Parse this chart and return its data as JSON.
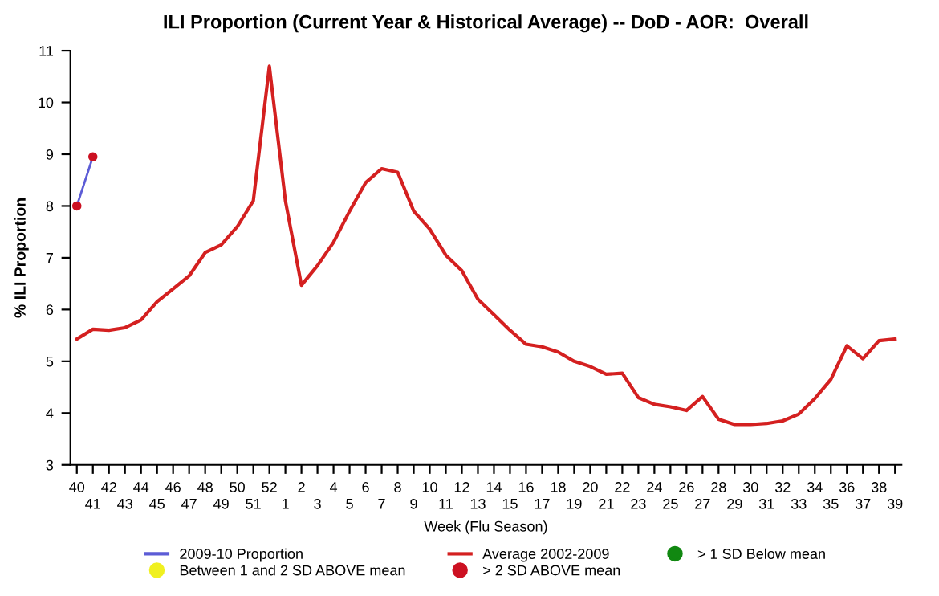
{
  "chart_data": {
    "type": "line",
    "title": "ILI Proportion (Current Year & Historical Average) -- DoD - AOR:  Overall",
    "xlabel": "Week (Flu Season)",
    "ylabel": "% ILI Proportion",
    "categories": [
      "40",
      "41",
      "42",
      "43",
      "44",
      "45",
      "46",
      "47",
      "48",
      "49",
      "50",
      "51",
      "52",
      "1",
      "2",
      "3",
      "4",
      "5",
      "6",
      "7",
      "8",
      "9",
      "10",
      "11",
      "12",
      "13",
      "14",
      "15",
      "16",
      "17",
      "18",
      "19",
      "20",
      "21",
      "22",
      "23",
      "24",
      "25",
      "26",
      "27",
      "28",
      "29",
      "30",
      "31",
      "32",
      "33",
      "34",
      "35",
      "36",
      "37",
      "38",
      "39"
    ],
    "series": [
      {
        "name": "2009-10 Proportion",
        "color": "#5c5cd6",
        "values": [
          8.0,
          8.95,
          null,
          null,
          null,
          null,
          null,
          null,
          null,
          null,
          null,
          null,
          null,
          null,
          null,
          null,
          null,
          null,
          null,
          null,
          null,
          null,
          null,
          null,
          null,
          null,
          null,
          null,
          null,
          null,
          null,
          null,
          null,
          null,
          null,
          null,
          null,
          null,
          null,
          null,
          null,
          null,
          null,
          null,
          null,
          null,
          null,
          null,
          null,
          null,
          null,
          null
        ]
      },
      {
        "name": "Average 2002-2009",
        "color": "#d42020",
        "values": [
          5.43,
          5.62,
          5.6,
          5.65,
          5.8,
          6.15,
          6.4,
          6.65,
          7.1,
          7.25,
          7.6,
          8.1,
          10.7,
          8.1,
          6.47,
          6.85,
          7.3,
          7.9,
          8.45,
          8.72,
          8.65,
          7.9,
          7.55,
          7.05,
          6.75,
          6.2,
          5.9,
          5.6,
          5.33,
          5.28,
          5.18,
          5.0,
          4.9,
          4.75,
          4.77,
          4.3,
          4.17,
          4.12,
          4.05,
          4.32,
          3.88,
          3.78,
          3.78,
          3.8,
          3.85,
          3.98,
          4.28,
          4.65,
          5.3,
          5.05,
          5.4,
          5.43
        ]
      },
      {
        "name": "> 1 SD Below mean",
        "type": "scatter",
        "marker": "circle",
        "color": "#118811",
        "values": [
          null,
          null,
          null,
          null,
          null,
          null,
          null,
          null,
          null,
          null,
          null,
          null,
          null,
          null,
          null,
          null,
          null,
          null,
          null,
          null,
          null,
          null,
          null,
          null,
          null,
          null,
          null,
          null,
          null,
          null,
          null,
          null,
          null,
          null,
          null,
          null,
          null,
          null,
          null,
          null,
          null,
          null,
          null,
          null,
          null,
          null,
          null,
          null,
          null,
          null,
          null,
          null
        ]
      },
      {
        "name": "Between 1 and 2 SD ABOVE mean",
        "type": "scatter",
        "marker": "circle",
        "color": "#f0f020",
        "values": [
          null,
          null,
          null,
          null,
          null,
          null,
          null,
          null,
          null,
          null,
          null,
          null,
          null,
          null,
          null,
          null,
          null,
          null,
          null,
          null,
          null,
          null,
          null,
          null,
          null,
          null,
          null,
          null,
          null,
          null,
          null,
          null,
          null,
          null,
          null,
          null,
          null,
          null,
          null,
          null,
          null,
          null,
          null,
          null,
          null,
          null,
          null,
          null,
          null,
          null,
          null,
          null
        ]
      },
      {
        "name": "> 2 SD ABOVE mean",
        "type": "scatter",
        "marker": "circle",
        "color": "#cc1122",
        "values": [
          8.0,
          8.95,
          null,
          null,
          null,
          null,
          null,
          null,
          null,
          null,
          null,
          null,
          null,
          null,
          null,
          null,
          null,
          null,
          null,
          null,
          null,
          null,
          null,
          null,
          null,
          null,
          null,
          null,
          null,
          null,
          null,
          null,
          null,
          null,
          null,
          null,
          null,
          null,
          null,
          null,
          null,
          null,
          null,
          null,
          null,
          null,
          null,
          null,
          null,
          null,
          null,
          null
        ]
      }
    ],
    "ylim": [
      3,
      11
    ],
    "yticks": [
      3,
      4,
      5,
      6,
      7,
      8,
      9,
      10,
      11
    ],
    "grid": false,
    "legend": "bottom",
    "marker": "none",
    "line_style": "solid"
  }
}
